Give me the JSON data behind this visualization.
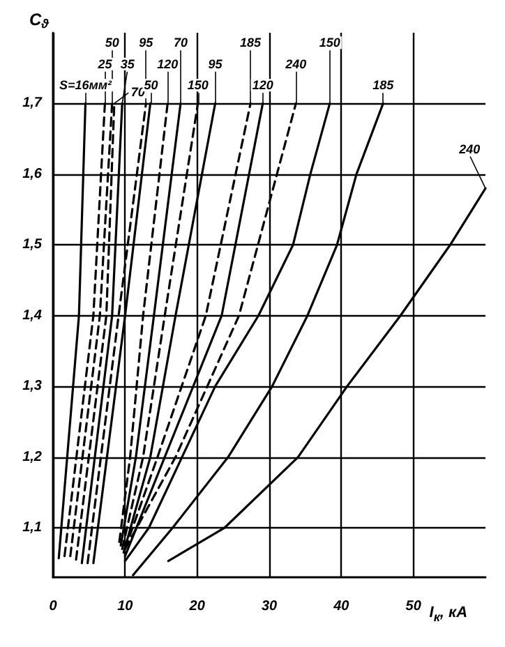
{
  "chart_data": {
    "type": "line",
    "xlabel": "I$_{к}$, кА",
    "ylabel": "C$_{ϑ}$",
    "xlim": [
      0,
      60
    ],
    "xticks": [
      0,
      10,
      20,
      30,
      40,
      50
    ],
    "ylim": [
      1.03,
      1.8
    ],
    "yticks": [
      {
        "value": 1.1,
        "label": "1,1"
      },
      {
        "value": 1.2,
        "label": "1,2"
      },
      {
        "value": 1.3,
        "label": "1,3"
      },
      {
        "value": 1.4,
        "label": "1,4"
      },
      {
        "value": 1.5,
        "label": "1,5"
      },
      {
        "value": 1.6,
        "label": "1,6"
      },
      {
        "value": 1.7,
        "label": "1,7"
      }
    ],
    "grid": true,
    "legend": false,
    "marker": "none",
    "line_style": "solid",
    "series": [
      {
        "name": "S=16мм²",
        "color": "#000000",
        "x": [
          0.8,
          3.6,
          4.5
        ],
        "values": [
          1.057,
          1.4,
          1.7
        ]
      },
      {
        "name": "25",
        "color": "#000000",
        "line_style": "dashed",
        "x": [
          1.6,
          5.6,
          7.2
        ],
        "values": [
          1.06,
          1.4,
          1.7
        ]
      },
      {
        "name": "50",
        "color": "#000000",
        "line_style": "dashed",
        "x": [
          2.4,
          6.5,
          8.2
        ],
        "values": [
          1.06,
          1.4,
          1.7
        ]
      },
      {
        "name": "70",
        "color": "#000000",
        "line_style": "dashed",
        "x": [
          3.2,
          7.4,
          8.5
        ],
        "values": [
          1.055,
          1.4,
          1.7
        ]
      },
      {
        "name": "35",
        "color": "#000000",
        "x": [
          4.0,
          8.2,
          9.6
        ],
        "values": [
          1.05,
          1.4,
          1.7
        ]
      },
      {
        "name": "95",
        "color": "#000000",
        "line_style": "dashed",
        "x": [
          4.8,
          9.1,
          12.9
        ],
        "values": [
          1.05,
          1.4,
          1.7
        ]
      },
      {
        "name": "50",
        "color": "#000000",
        "x": [
          5.6,
          10.0,
          13.5
        ],
        "values": [
          1.05,
          1.4,
          1.7
        ]
      },
      {
        "name": "120",
        "color": "#000000",
        "line_style": "dashed",
        "x": [
          9.2,
          10.7,
          12.5,
          15.9
        ],
        "values": [
          1.08,
          1.2,
          1.4,
          1.7
        ]
      },
      {
        "name": "70",
        "color": "#000000",
        "x": [
          9.4,
          11.5,
          14.0,
          17.7
        ],
        "values": [
          1.075,
          1.2,
          1.4,
          1.7
        ]
      },
      {
        "name": "150",
        "color": "#000000",
        "line_style": "dashed",
        "x": [
          9.6,
          12.5,
          15.5,
          20.1
        ],
        "values": [
          1.07,
          1.2,
          1.4,
          1.7
        ]
      },
      {
        "name": "95",
        "color": "#000000",
        "x": [
          9.8,
          13.5,
          17.0,
          22.5
        ],
        "values": [
          1.065,
          1.2,
          1.4,
          1.7
        ]
      },
      {
        "name": "185",
        "color": "#000000",
        "line_style": "dashed",
        "x": [
          10,
          14.5,
          21.2,
          27.4
        ],
        "values": [
          1.07,
          1.2,
          1.4,
          1.7
        ]
      },
      {
        "name": "120",
        "color": "#000000",
        "x": [
          10,
          15.5,
          23.4,
          29.1
        ],
        "values": [
          1.06,
          1.2,
          1.4,
          1.7
        ]
      },
      {
        "name": "240",
        "color": "#000000",
        "line_style": "dashed",
        "x": [
          10,
          17,
          25.8,
          33.7
        ],
        "values": [
          1.07,
          1.2,
          1.4,
          1.7
        ]
      },
      {
        "name": "150",
        "color": "#000000",
        "x": [
          10,
          13.3,
          17.9,
          22.5,
          28.5,
          33.3,
          35.7,
          38.4
        ],
        "values": [
          1.053,
          1.1,
          1.2,
          1.3,
          1.4,
          1.5,
          1.6,
          1.7
        ]
      },
      {
        "name": "185",
        "color": "#000000",
        "x": [
          11.1,
          16.6,
          24.3,
          30.4,
          35.3,
          39.4,
          42.1,
          45.8
        ],
        "values": [
          1.033,
          1.1,
          1.2,
          1.3,
          1.4,
          1.5,
          1.6,
          1.7
        ]
      },
      {
        "name": "240",
        "color": "#000000",
        "x": [
          16,
          23.8,
          34,
          40.8,
          48.2,
          55.1,
          60
        ],
        "values": [
          1.053,
          1.1,
          1.2,
          1.3,
          1.4,
          1.5,
          1.58
        ]
      }
    ]
  }
}
